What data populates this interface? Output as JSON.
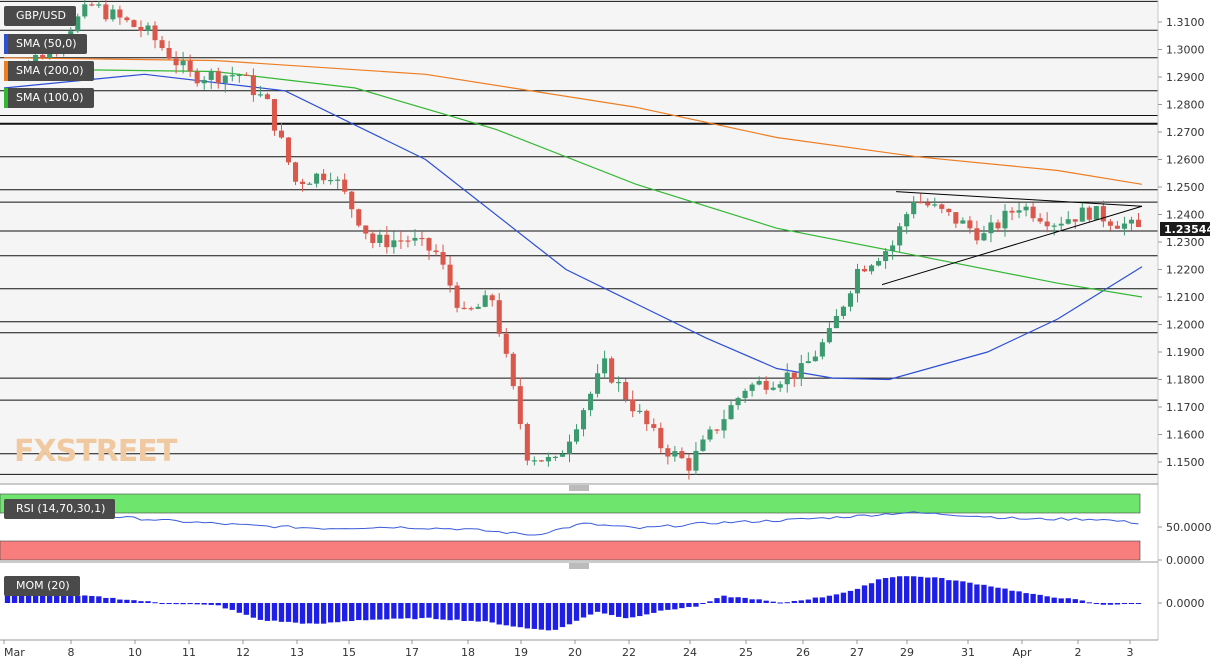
{
  "symbol": "GBP/USD",
  "indicators": {
    "sma50": {
      "label": "SMA (50,0)",
      "color": "#2d4fd6"
    },
    "sma200": {
      "label": "SMA (200,0)",
      "color": "#ee7d22"
    },
    "sma100": {
      "label": "SMA (100,0)",
      "color": "#33b833"
    },
    "rsi": {
      "label": "RSI (14,70,30,1)"
    },
    "mom": {
      "label": "MOM (20)"
    }
  },
  "watermark": "FXSTREET",
  "last_price": "1.23544",
  "colors": {
    "bull": "#3b9a6e",
    "bear": "#d9574b",
    "rsi_line": "#3a5bd9",
    "rsi_top": "#6ee66e",
    "rsi_bottom": "#f87d7d",
    "mom_bar": "#1e1ee6",
    "pattern_lines": "#000000"
  },
  "chart_data": {
    "type": "candlestick",
    "symbol": "GBP/USD",
    "timeframe": "4H",
    "x_labels": [
      "Mar",
      "8",
      "10",
      "11",
      "12",
      "13",
      "15",
      "17",
      "18",
      "19",
      "20",
      "22",
      "24",
      "25",
      "26",
      "27",
      "29",
      "31",
      "Apr",
      "2",
      "3"
    ],
    "y_axis": {
      "ticks": [
        "1.3100",
        "1.3000",
        "1.2900",
        "1.2800",
        "1.2700",
        "1.2600",
        "1.2500",
        "1.2400",
        "1.2300",
        "1.2200",
        "1.2100",
        "1.2000",
        "1.1900",
        "1.1800",
        "1.1700",
        "1.1600",
        "1.1500"
      ],
      "range": [
        1.142,
        1.318
      ]
    },
    "horizontal_levels": [
      1.3175,
      1.307,
      1.297,
      1.285,
      1.276,
      1.273,
      1.261,
      1.249,
      1.2445,
      1.234,
      1.225,
      1.213,
      1.201,
      1.197,
      1.1805,
      1.1725,
      1.153,
      1.1455,
      1.142
    ],
    "candle_count": 162,
    "segments": [
      {
        "from": 0,
        "to": 6,
        "open": 1.29,
        "close": 1.2985
      },
      {
        "from": 6,
        "to": 13,
        "open": 1.2985,
        "close": 1.316
      },
      {
        "from": 13,
        "to": 21,
        "open": 1.316,
        "close": 1.306
      },
      {
        "from": 21,
        "to": 27,
        "open": 1.306,
        "close": 1.2905
      },
      {
        "from": 27,
        "to": 34,
        "open": 1.2905,
        "close": 1.291
      },
      {
        "from": 34,
        "to": 38,
        "open": 1.291,
        "close": 1.28
      },
      {
        "from": 38,
        "to": 42,
        "open": 1.28,
        "close": 1.252
      },
      {
        "from": 42,
        "to": 47,
        "open": 1.252,
        "close": 1.2555
      },
      {
        "from": 47,
        "to": 53,
        "open": 1.2555,
        "close": 1.23
      },
      {
        "from": 53,
        "to": 58,
        "open": 1.23,
        "close": 1.231
      },
      {
        "from": 58,
        "to": 62,
        "open": 1.231,
        "close": 1.226
      },
      {
        "from": 62,
        "to": 66,
        "open": 1.226,
        "close": 1.203
      },
      {
        "from": 66,
        "to": 70,
        "open": 1.203,
        "close": 1.2095
      },
      {
        "from": 70,
        "to": 75,
        "open": 1.2095,
        "close": 1.153
      },
      {
        "from": 75,
        "to": 79,
        "open": 1.153,
        "close": 1.1495
      },
      {
        "from": 79,
        "to": 86,
        "open": 1.1495,
        "close": 1.185
      },
      {
        "from": 86,
        "to": 94,
        "open": 1.185,
        "close": 1.156
      },
      {
        "from": 94,
        "to": 98,
        "open": 1.156,
        "close": 1.149
      },
      {
        "from": 98,
        "to": 106,
        "open": 1.149,
        "close": 1.177
      },
      {
        "from": 106,
        "to": 114,
        "open": 1.177,
        "close": 1.183
      },
      {
        "from": 114,
        "to": 118,
        "open": 1.183,
        "close": 1.196
      },
      {
        "from": 118,
        "to": 122,
        "open": 1.196,
        "close": 1.22
      },
      {
        "from": 122,
        "to": 127,
        "open": 1.22,
        "close": 1.229
      },
      {
        "from": 127,
        "to": 130,
        "open": 1.229,
        "close": 1.246
      },
      {
        "from": 130,
        "to": 136,
        "open": 1.246,
        "close": 1.238
      },
      {
        "from": 136,
        "to": 140,
        "open": 1.238,
        "close": 1.232
      },
      {
        "from": 140,
        "to": 145,
        "open": 1.232,
        "close": 1.2435
      },
      {
        "from": 145,
        "to": 150,
        "open": 1.2435,
        "close": 1.2375
      },
      {
        "from": 150,
        "to": 155,
        "open": 1.2375,
        "close": 1.241
      },
      {
        "from": 155,
        "to": 161,
        "open": 1.241,
        "close": 1.2354
      }
    ],
    "sma_lines": {
      "sma50": [
        [
          0,
          1.286
        ],
        [
          20,
          1.291
        ],
        [
          40,
          1.285
        ],
        [
          60,
          1.26
        ],
        [
          80,
          1.22
        ],
        [
          100,
          1.195
        ],
        [
          110,
          1.184
        ],
        [
          118,
          1.1805
        ],
        [
          126,
          1.18
        ],
        [
          140,
          1.19
        ],
        [
          150,
          1.202
        ],
        [
          162,
          1.221
        ]
      ],
      "sma200": [
        [
          0,
          1.297
        ],
        [
          30,
          1.296
        ],
        [
          60,
          1.291
        ],
        [
          90,
          1.279
        ],
        [
          110,
          1.268
        ],
        [
          130,
          1.261
        ],
        [
          150,
          1.256
        ],
        [
          162,
          1.251
        ]
      ],
      "sma100": [
        [
          0,
          1.293
        ],
        [
          30,
          1.292
        ],
        [
          50,
          1.286
        ],
        [
          70,
          1.271
        ],
        [
          90,
          1.251
        ],
        [
          110,
          1.235
        ],
        [
          130,
          1.225
        ],
        [
          150,
          1.215
        ],
        [
          162,
          1.21
        ]
      ]
    },
    "triangle": {
      "upper": [
        [
          127,
          1.2483
        ],
        [
          162,
          1.243
        ]
      ],
      "lower": [
        [
          125,
          1.2145
        ],
        [
          162,
          1.243
        ]
      ]
    },
    "rsi": {
      "y_ticks": [
        "50.0000",
        "0.0000"
      ],
      "points": [
        [
          0,
          72
        ],
        [
          10,
          70
        ],
        [
          22,
          60
        ],
        [
          35,
          52
        ],
        [
          45,
          48
        ],
        [
          55,
          50
        ],
        [
          65,
          47
        ],
        [
          75,
          38
        ],
        [
          82,
          55
        ],
        [
          90,
          48
        ],
        [
          100,
          56
        ],
        [
          110,
          60
        ],
        [
          120,
          66
        ],
        [
          128,
          72
        ],
        [
          136,
          68
        ],
        [
          145,
          62
        ],
        [
          155,
          62
        ],
        [
          162,
          55
        ]
      ]
    },
    "mom": {
      "y_ticks": [
        "0.0000"
      ],
      "points": [
        [
          0,
          0.01
        ],
        [
          12,
          0.008
        ],
        [
          22,
          0.0
        ],
        [
          30,
          -0.003
        ],
        [
          36,
          -0.02
        ],
        [
          44,
          -0.025
        ],
        [
          50,
          -0.02
        ],
        [
          60,
          -0.018
        ],
        [
          68,
          -0.022
        ],
        [
          74,
          -0.03
        ],
        [
          78,
          -0.032
        ],
        [
          84,
          -0.01
        ],
        [
          88,
          -0.018
        ],
        [
          94,
          -0.008
        ],
        [
          98,
          -0.004
        ],
        [
          102,
          0.008
        ],
        [
          106,
          0.005
        ],
        [
          110,
          0.0
        ],
        [
          116,
          0.007
        ],
        [
          121,
          0.016
        ],
        [
          124,
          0.028
        ],
        [
          127,
          0.032
        ],
        [
          132,
          0.03
        ],
        [
          140,
          0.02
        ],
        [
          146,
          0.01
        ],
        [
          152,
          0.004
        ],
        [
          156,
          -0.002
        ],
        [
          162,
          0.0
        ]
      ]
    }
  }
}
